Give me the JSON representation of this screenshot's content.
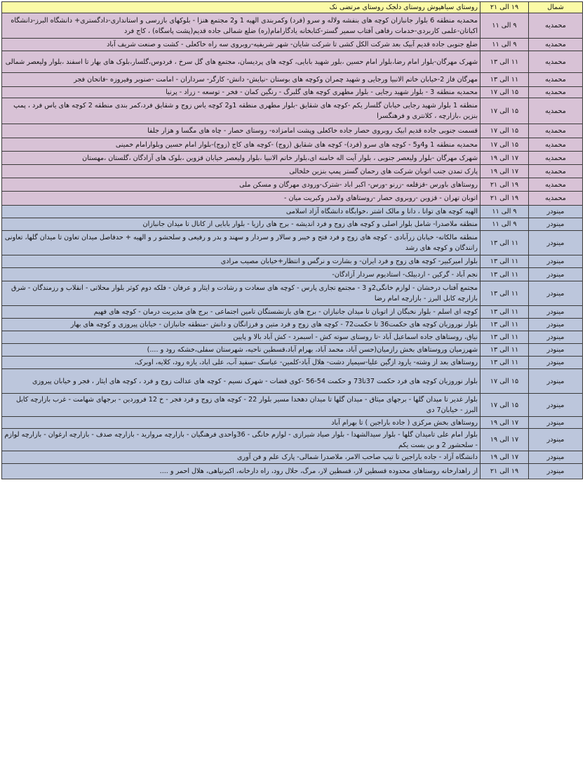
{
  "colors": {
    "header": "#fbfaa6",
    "mohammadieh": "#d8c2d6",
    "minoodar": "#bcc6dc",
    "border": "#3a3a3a"
  },
  "rows": [
    {
      "region": "شمال",
      "time": "۱۹ الی ۲۱",
      "desc": "روستای سیاهپوش روستای دلجک روستای مرتضی نک",
      "group": "header"
    },
    {
      "region": "محمدیه",
      "time": "۹ الی ۱۱",
      "desc": "محمدیه منطقه 6 بلوار جانبازان کوچه های بنفشه ولاله و سرو (فرد) وکمربندی الهیه 1 و2 مجتمع هنزا - بلوکهای بازرسی و استانداری-دادگستری+ دانشگاه البرز-دانشگاه اکباتان-علمی کاربردی-خدمات رفاهی آفتاب سمیر گستر-کتابخانه یادگارامام(ره) ضلع شمالی جاده قدیم(پشت پاسگاه) ، کاج فرد",
      "group": "mohammadieh"
    },
    {
      "region": "محمدیه",
      "time": "۹ الی ۱۱",
      "desc": "ضلع جنوبی جاده قدیم آبیک بعد شرکت الکل کشی تا شرکت شایان- شهر شریفیه-روبروی سه راه خاکعلی - کشت و صنعت شریف آباد",
      "group": "mohammadieh"
    },
    {
      "region": "محمدیه",
      "time": "۱۱ الی ۱۳",
      "desc": "شهرک مهرگان-بلوار امام رضا،بلوار امام حسین ،بلور شهید بابایی، کوچه های پردیسان، مجتمع های گل سرخ ، فردوس،گلسار،بلوک های بهار تا اسفند ،بلوار ولیعصر شمالی",
      "group": "mohammadieh"
    },
    {
      "region": "محمدیه",
      "time": "۱۱ الی ۱۳",
      "desc": "مهرگان فاز 2-خیابان خاتم الانبیا ورجایی و شهید چمران وکوچه های بوستان -نیایش- دانش- کارگر- سرداران - امامت -صنوبر وفیروزه -فاتحان فجر",
      "group": "mohammadieh"
    },
    {
      "region": "محمدیه",
      "time": "۱۵ الی ۱۷",
      "desc": "محمدیه منطقه 3 - بلوار شهید رجایی - بلوار مطهری کوچه های گلبرگ - رنگین کمان - فخر - توسعه - زراد - پرنیا",
      "group": "mohammadieh"
    },
    {
      "region": "محمدیه",
      "time": "۱۵ الی ۱۷",
      "desc": "منطقه 1 بلوار شهید رجایی خیابان گلسار یکم -کوچه های شقایق -بلوار مطهری منطقه 1و2 کوچه یاس زوج و شقایق فرد،کمر بندی منطقه 2 کوچه های یاس فرد ، پمپ بنزین ،بازارچه ، کلانتری و فرهنگسرا",
      "group": "mohammadieh"
    },
    {
      "region": "محمدیه",
      "time": "۱۵ الی ۱۷",
      "desc": "قسمت جنوبی جاده قدیم ابیک روبروی حصار جاده خاکعلی وپشت امامزاده- روستای حصار - چاه های مگسا و هزار جلفا",
      "group": "mohammadieh"
    },
    {
      "region": "محمدیه",
      "time": "۱۵ الی ۱۷",
      "desc": "محمدیه منطقه 1 و4و5 - کوچه های سرو (فرد)- کوچه های شقایق (زوج) -کوچه های کاج (زوج)-بلوار امام حسین وبلوارامام خمینی",
      "group": "mohammadieh"
    },
    {
      "region": "محمدیه",
      "time": "۱۷ الی ۱۹",
      "desc": "شهرک مهرگان -بلوار ولیعصر جنوبی ، بلوار آیت اله خامنه ای،بلوار خاتم الانبیا ،بلوار ولیعصر خیابان قزوین ،بلوک های آزادگان ،گلستان ،مهستان",
      "group": "mohammadieh"
    },
    {
      "region": "محمدیه",
      "time": "۱۷ الی ۱۹",
      "desc": "پارک تمدن جنب اتوبان شرکت های رحمان گستر پمپ بنزین خلخالی",
      "group": "mohammadieh"
    },
    {
      "region": "محمدیه",
      "time": "۱۹ الی ۲۱",
      "desc": "روستاهای باورس -قزقلعه -زرنو -ورس- اکبر اباد -شترک-ورودی مهرگان و مسکن ملی",
      "group": "mohammadieh"
    },
    {
      "region": "محمدیه",
      "time": "۱۹ الی ۲۱",
      "desc": "اتوبان تهران - قزوین -روبروی حصار -روستاهای ولامدر وکبریت میان -",
      "group": "mohammadieh"
    },
    {
      "region": "مینودر",
      "time": "۹ الی ۱۱",
      "desc": "الهیه کوچه های توانا ، دانا و مالک اشتر ،خوابگاه دانشگاه آزاد اسلامی",
      "group": "minoodar"
    },
    {
      "region": "مینودر",
      "time": "۹ الی ۱۱",
      "desc": "منطقه ملاصدرا- شامل بلوار اصلی و کوچه های زوج و فرد اندیشه - برج های رازیا - بلوار بابایی از کانال تا میدان جانبازان",
      "group": "minoodar"
    },
    {
      "region": "مینودر",
      "time": "۱۱ الی ۱۳",
      "desc": "منطقه مالکانه- خیابان زرآبادی - کوچه های زوج و فرد فتح و خیبر و سالار و سردار و سهند و بدر و رفیعی و سلحشو ر و الهیه + حدفاصل میدان تعاون تا میدان گلها، تعاونی رانندگان و کوچه های رشد",
      "group": "minoodar"
    },
    {
      "region": "مینودر",
      "time": "۱۱ الی ۱۳",
      "desc": "بلوار امیرکبیر- کوچه های زوج و فرد ایران- و بشارت و نرگس و انتظار+خیابان مصیب مرادی",
      "group": "minoodar"
    },
    {
      "region": "مینودر",
      "time": "۱۱ الی ۱۳",
      "desc": "نجم آباد - گرکین - اردبیلک- استادیوم سردار آزادگان-",
      "group": "minoodar"
    },
    {
      "region": "مینودر",
      "time": "۱۱ الی ۱۳",
      "desc": "مجتمع آفتاب درخشان - لوازم خانگی2و 3 - مجتمع تجاری پارس - کوچه های سعادت و رشادت و ایثار و عرفان - فلکه دوم کوثر بلوار محلاتی - انقلاب و رزمندگان - شرق بازارچه کابل البرز - بازارچه امام رضا",
      "group": "minoodar"
    },
    {
      "region": "مینودر",
      "time": "۱۱ الی ۱۳",
      "desc": "کوچه ای اسلم - بلوار نخبگان از اتوبان تا میدان جانبازان - برج های بازنشستگان تامین اجتماعی - برج های مدیریت درمان - کوچه های فهیم",
      "group": "minoodar"
    },
    {
      "region": "مینودر",
      "time": "۱۱ الی ۱۳",
      "desc": "بلوار نوروزیان کوچه های حکمت36 تا حکمت72 - کوچه های زوج و فرد متین و فرزانگان و دانش -منطقه جانبازان - خیابان پیروزی و کوچه های بهار",
      "group": "minoodar"
    },
    {
      "region": "مینودر",
      "time": "۱۱ الی ۱۳",
      "desc": "نیاق، روستاهای جاده اسماعیل آباد -تا روستای سوته کش - اسبمرد - کش آباد بالا و پایین",
      "group": "minoodar"
    },
    {
      "region": "مینودر",
      "time": "۱۱ الی ۱۳",
      "desc": "شهرزمیان وروستاهای بخش رازمیان(حسن آباد، محمد آباد، بهرام آباد،قسطین ناحیه، شهرستان سفلی،خشکه رود و ....)",
      "group": "minoodar"
    },
    {
      "region": "مینودر",
      "time": "۱۱ الی ۱۳",
      "desc": "روستاهای بعد از وشته- یارود ازگین علیا-سیمیار دشت- هلال آباد-کلمین- عباسک -سفید آب، علی اباد، یازه رود، کلایه، اوبرک،",
      "group": "minoodar"
    },
    {
      "region": "مینودر",
      "time": "۱۵ الی ۱۷",
      "desc": "بلوار نوروزیان کوچه های فرد حکمت 37تا73 و حکمت 54-56 -کوی قضات - شهرک نسیم - کوچه های عدالت زوج و فرد ، کوچه های ایثار ، فجر و خیابان پیروزی",
      "group": "minoodar"
    },
    {
      "region": "مینودر",
      "time": "۱۵ الی ۱۷",
      "desc": "بلوار غدیر تا میدان گلها - برجهای میثاق - میدان گلها تا میدان دهخدا مسیر بلوار 22 - کوچه های زوج و فرد فجر - خ 12 فروردین - برجهای شهامت - غرب بازارچه کابل البرز - خیابان7 دی",
      "group": "minoodar"
    },
    {
      "region": "مینودر",
      "time": "۱۷ الی ۱۹",
      "desc": "روستاهای بخش مرکزی ( جاده باراجین ) تا بهرام آباد",
      "group": "minoodar"
    },
    {
      "region": "مینودر",
      "time": "۱۷ الی ۱۹",
      "desc": "بلوار امام علی تامیدان گلها - بلوار سیدالشهدا - بلوار صیاد شیرازی - لوازم خانگی - 36واحدی فرهنگیان - بازارچه مروارید - بازارچه صدف - بازارچه ارغوان - بازارچه لوازم - سلحشور 2 و بن بست یکم",
      "group": "minoodar"
    },
    {
      "region": "مینودر",
      "time": "۱۷ الی ۱۹",
      "desc": "دانشگاه آزاد - جاده باراجین تا تیپ صاحب الامر، ملاصدرا شمالی- پارک علم و فن آوری",
      "group": "minoodar"
    },
    {
      "region": "مینودر",
      "time": "۱۹ الی ۲۱",
      "desc": "از راهدارخانه روستاهای محدوده قسطین لار، قسطین لار، مرگ، حلال رود، راه دارخانه، اکبرنیاهی، هلال احمر و ....",
      "group": "minoodar"
    }
  ]
}
